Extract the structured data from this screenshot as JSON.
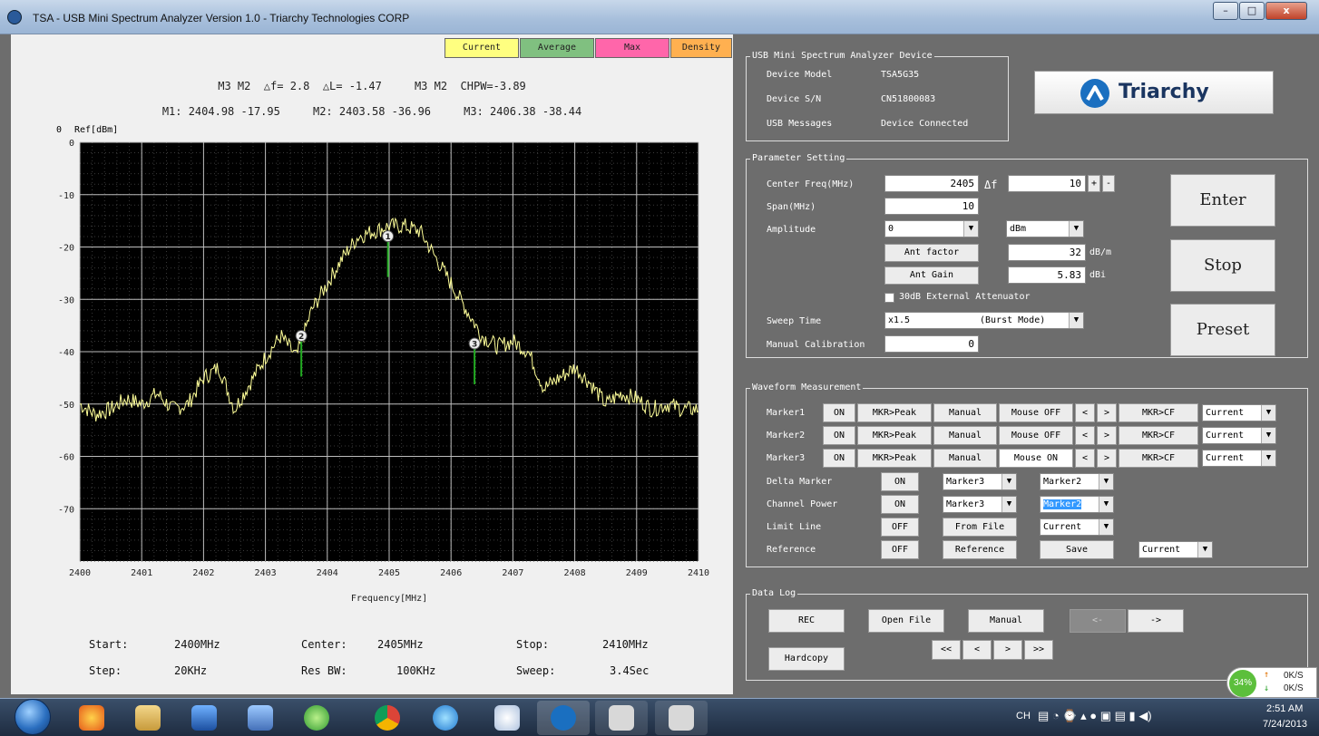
{
  "window": {
    "title": "TSA  -  USB Mini Spectrum Analyzer Version 1.0  - Triarchy Technologies CORP",
    "minimize": "–",
    "maximize": "□",
    "close": "x"
  },
  "tabs": [
    {
      "label": "Current",
      "color": "#ffff80"
    },
    {
      "label": "Average",
      "color": "#80c080"
    },
    {
      "label": "Max",
      "color": "#ff66aa"
    },
    {
      "label": "Density",
      "color": "#ffb050"
    }
  ],
  "header": {
    "line1": "M3 M2  △f= 2.8  △L= -1.47     M3 M2  CHPW=-3.89",
    "line2": "M1: 2404.98 -17.95     M2: 2403.58 -36.96     M3: 2406.38 -38.44",
    "ref_zero": "0",
    "ref_label": "Ref[dBm]"
  },
  "chart_data": {
    "type": "line",
    "xlabel": "Frequency[MHz]",
    "ylabel": "Ref[dBm]",
    "xlim": [
      2400,
      2410
    ],
    "ylim": [
      -80,
      0
    ],
    "x_ticks": [
      "2400",
      "2401",
      "2402",
      "2403",
      "2404",
      "2405",
      "2406",
      "2407",
      "2408",
      "2409",
      "2410"
    ],
    "y_ticks": [
      "0",
      "-10",
      "-20",
      "-30",
      "-40",
      "-50",
      "-60",
      "-70"
    ],
    "grid": true,
    "background": "#000000",
    "trace_color": "#ffff99",
    "series": [
      {
        "x": [
          2400.0,
          2400.25,
          2400.5,
          2400.75,
          2401.0,
          2401.25,
          2401.5,
          2401.75,
          2402.0,
          2402.25,
          2402.5,
          2402.75,
          2403.0,
          2403.25,
          2403.5,
          2403.75,
          2404.0,
          2404.25,
          2404.5,
          2404.75,
          2405.0,
          2405.25,
          2405.5,
          2405.75,
          2406.0,
          2406.25,
          2406.5,
          2406.75,
          2407.0,
          2407.25,
          2407.5,
          2407.75,
          2408.0,
          2408.25,
          2408.5,
          2408.75,
          2409.0,
          2409.25,
          2409.5,
          2409.75,
          2410.0
        ],
        "y": [
          -50,
          -52,
          -51,
          -49,
          -50,
          -48,
          -51,
          -50,
          -45,
          -43,
          -51,
          -46,
          -41,
          -37,
          -41,
          -32,
          -27,
          -22,
          -18,
          -17,
          -16,
          -16,
          -17,
          -22,
          -27,
          -32,
          -37,
          -39,
          -38,
          -40,
          -47,
          -45,
          -43,
          -46,
          -50,
          -48,
          -49,
          -51,
          -50,
          -51,
          -51
        ]
      }
    ],
    "markers": [
      {
        "id": "1",
        "x": 2404.98,
        "y": -17.95
      },
      {
        "id": "2",
        "x": 2403.58,
        "y": -36.96
      },
      {
        "id": "3",
        "x": 2406.38,
        "y": -38.44
      }
    ]
  },
  "footer": {
    "start_label": "Start:",
    "start_value": "2400MHz",
    "center_label": "Center:",
    "center_value": "2405MHz",
    "stop_label": "Stop:",
    "stop_value": "2410MHz",
    "step_label": "Step:",
    "step_value": "20KHz",
    "resbw_label": "Res BW:",
    "resbw_value": "100KHz",
    "sweep_label": "Sweep:",
    "sweep_value": "3.4Sec"
  },
  "device": {
    "group_title": "USB Mini Spectrum Analyzer Device",
    "model_label": "Device Model",
    "model_value": "TSA5G35",
    "sn_label": "Device S/N",
    "sn_value": "CN51800083",
    "usb_label": "USB Messages",
    "usb_value": "Device Connected",
    "logo_text": "Triarchy"
  },
  "params": {
    "group_title": "Parameter Setting",
    "center_label": "Center Freq(MHz)",
    "center_value": "2405",
    "delta_f": "Δf",
    "delta_value": "10",
    "plus": "+",
    "minus": "-",
    "span_label": "Span(MHz)",
    "span_value": "10",
    "amplitude_label": "Amplitude",
    "amplitude_value": "0",
    "amplitude_unit": "dBm",
    "ant_factor": "Ant factor",
    "ant_factor_value": "32",
    "ant_factor_unit": "dB/m",
    "ant_gain": "Ant Gain",
    "ant_gain_value": "5.83",
    "ant_gain_unit": "dBi",
    "attenuator": "30dB External Attenuator",
    "sweep_label": "Sweep Time",
    "sweep_value": "x1.5",
    "sweep_mode": "(Burst Mode)",
    "calib_label": "Manual Calibration",
    "calib_value": "0",
    "enter": "Enter",
    "stop": "Stop",
    "preset": "Preset"
  },
  "waveform": {
    "group_title": "Waveform Measurement",
    "markers": [
      {
        "label": "Marker1",
        "on": "ON",
        "peak": "MKR>Peak",
        "manual": "Manual",
        "mouse": "Mouse OFF",
        "left": "<",
        "right": ">",
        "cf": "MKR>CF",
        "trace": "Current"
      },
      {
        "label": "Marker2",
        "on": "ON",
        "peak": "MKR>Peak",
        "manual": "Manual",
        "mouse": "Mouse OFF",
        "left": "<",
        "right": ">",
        "cf": "MKR>CF",
        "trace": "Current"
      },
      {
        "label": "Marker3",
        "on": "ON",
        "peak": "MKR>Peak",
        "manual": "Manual",
        "mouse": "Mouse ON",
        "left": "<",
        "right": ">",
        "cf": "MKR>CF",
        "trace": "Current"
      }
    ],
    "delta_label": "Delta Marker",
    "delta_on": "ON",
    "delta_a": "Marker3",
    "delta_b": "Marker2",
    "chpow_label": "Channel Power",
    "chpow_on": "ON",
    "chpow_a": "Marker3",
    "chpow_b": "Marker2",
    "limit_label": "Limit Line",
    "limit_off": "OFF",
    "limit_file": "From File",
    "limit_trace": "Current",
    "ref_label": "Reference",
    "ref_off": "OFF",
    "ref_btn": "Reference",
    "ref_save": "Save",
    "ref_trace": "Current"
  },
  "datalog": {
    "group_title": "Data Log",
    "rec": "REC",
    "open": "Open File",
    "manual": "Manual",
    "prev": "<-",
    "next": "->",
    "hardcopy": "Hardcopy",
    "first": "<<",
    "back": "<",
    "fwd": ">",
    "last": ">>"
  },
  "tray": {
    "network_pct": "34%",
    "up_rate": "0K/S",
    "down_rate": "0K/S",
    "ime": "CH",
    "time": "2:51 AM",
    "date": "7/24/2013"
  }
}
